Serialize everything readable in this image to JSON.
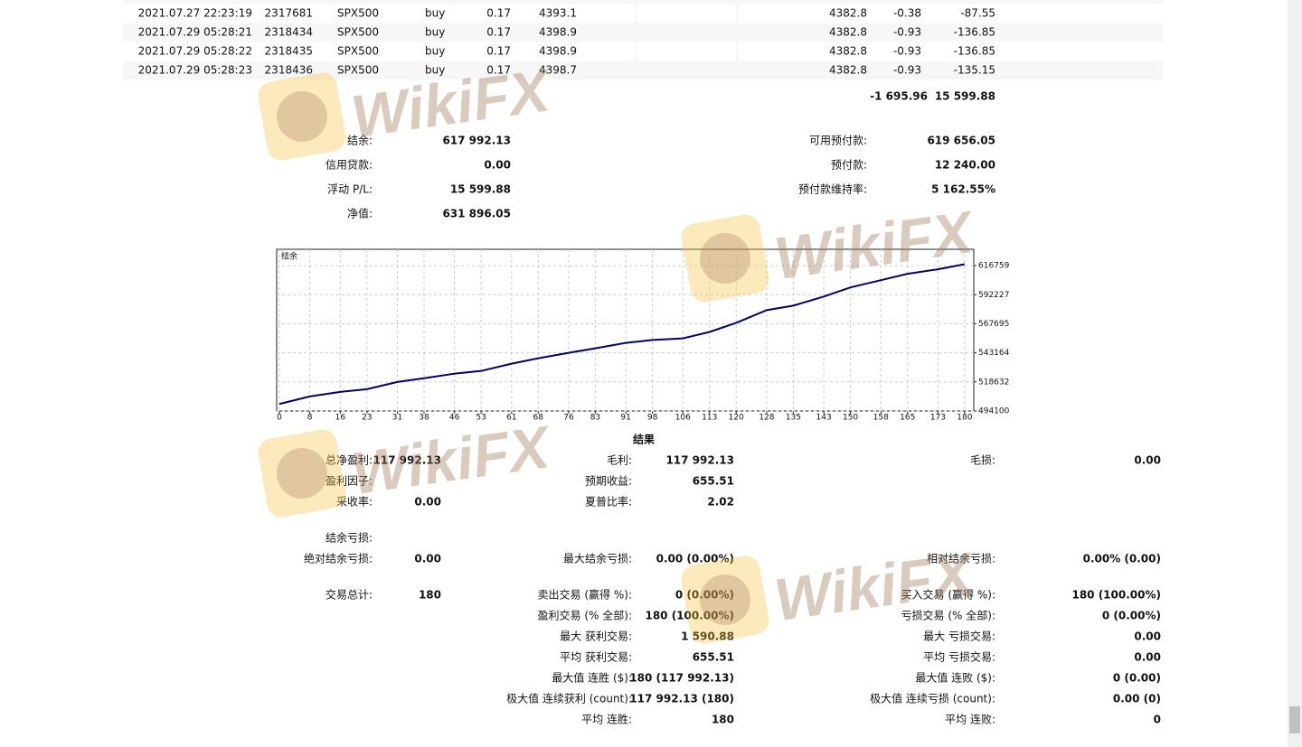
{
  "trades": {
    "rows": [
      [
        "2021.07.27 22:23:19",
        "2317681",
        "SPX500",
        "buy",
        "0.17",
        "4393.1",
        "4382.8",
        "-0.38",
        "-87.55"
      ],
      [
        "2021.07.29 05:28:21",
        "2318434",
        "SPX500",
        "buy",
        "0.17",
        "4398.9",
        "4382.8",
        "-0.93",
        "-136.85"
      ],
      [
        "2021.07.29 05:28:22",
        "2318435",
        "SPX500",
        "buy",
        "0.17",
        "4398.9",
        "4382.8",
        "-0.93",
        "-136.85"
      ],
      [
        "2021.07.29 05:28:23",
        "2318436",
        "SPX500",
        "buy",
        "0.17",
        "4398.7",
        "4382.8",
        "-0.93",
        "-135.15"
      ]
    ],
    "totals": [
      "-1 695.96",
      "15 599.88"
    ]
  },
  "summary": {
    "left": [
      [
        "结余:",
        "617 992.13"
      ],
      [
        "信用贷款:",
        "0.00"
      ],
      [
        "浮动 P/L:",
        "15 599.88"
      ],
      [
        "净值:",
        "631 896.05"
      ]
    ],
    "right": [
      [
        "可用预付款:",
        "619 656.05"
      ],
      [
        "预付款:",
        "12 240.00"
      ],
      [
        "预付款维持率:",
        "5 162.55%"
      ]
    ]
  },
  "chart_data": {
    "type": "line",
    "title": "结余",
    "x": [
      0,
      8,
      16,
      23,
      31,
      38,
      46,
      53,
      61,
      68,
      76,
      83,
      91,
      98,
      106,
      113,
      120,
      128,
      135,
      143,
      150,
      158,
      165,
      173,
      180
    ],
    "series": [
      {
        "color": "#000066",
        "values": [
          500000,
          506400,
          510200,
          512500,
          518600,
          521700,
          525600,
          527900,
          534000,
          538600,
          543200,
          547000,
          551600,
          554000,
          555400,
          560800,
          568500,
          579200,
          583000,
          590700,
          598400,
          604500,
          609900,
          613700,
          617992
        ]
      }
    ],
    "xlim": [
      -0.7,
      182.4
    ],
    "ylim": [
      494100,
      630559
    ],
    "xticks": [
      0,
      8,
      16,
      23,
      31,
      38,
      46,
      53,
      61,
      68,
      76,
      83,
      91,
      98,
      106,
      113,
      120,
      128,
      135,
      143,
      150,
      158,
      165,
      173,
      180
    ],
    "yticks": [
      494100,
      518632,
      543164,
      567695,
      592227,
      616759
    ],
    "grid": true
  },
  "results": {
    "title": "结果",
    "rows": [
      {
        "c1": [
          "总净盈利:",
          "117 992.13"
        ],
        "c2": [
          "毛利:",
          "117 992.13"
        ],
        "c3": [
          "毛损:",
          "0.00"
        ]
      },
      {
        "c1": [
          "盈利因子:"
        ],
        "c2": [
          "预期收益:",
          "655.51"
        ]
      },
      {
        "c1": [
          "采收率:",
          "0.00"
        ],
        "c2": [
          "夏普比率:",
          "2.02"
        ]
      },
      {
        "c1": [
          "结余亏损:"
        ]
      },
      {
        "c1": [
          "绝对结余亏损:",
          "0.00"
        ],
        "c2": [
          "最大结余亏损:",
          "0.00 (0.00%)"
        ],
        "c3": [
          "相对结余亏损:",
          "0.00% (0.00)"
        ]
      },
      {
        "c1": [
          "交易总计:",
          "180"
        ],
        "c2": [
          "卖出交易 (赢得 %):",
          "0 (0.00%)"
        ],
        "c3": [
          "买入交易 (赢得 %):",
          "180 (100.00%)"
        ]
      },
      {
        "c2": [
          "盈利交易 (% 全部):",
          "180 (100.00%)"
        ],
        "c3": [
          "亏损交易 (% 全部):",
          "0 (0.00%)"
        ]
      },
      {
        "c2": [
          "最大 获利交易:",
          "1 590.88"
        ],
        "c3": [
          "最大 亏损交易:",
          "0.00"
        ]
      },
      {
        "c2": [
          "平均 获利交易:",
          "655.51"
        ],
        "c3": [
          "平均 亏损交易:",
          "0.00"
        ]
      },
      {
        "c2": [
          "最大值 连胜 ($):",
          "180 (117 992.13)"
        ],
        "c3": [
          "最大值 连败 ($):",
          "0 (0.00)"
        ]
      },
      {
        "c2": [
          "极大值 连续获利 (count):",
          "117 992.13 (180)"
        ],
        "c3": [
          "极大值 连续亏损 (count):",
          "0.00 (0)"
        ]
      },
      {
        "c2": [
          "平均 连胜:",
          "180"
        ],
        "c3": [
          "平均 连败:",
          "0"
        ]
      }
    ]
  },
  "watermark": "WikiFX"
}
